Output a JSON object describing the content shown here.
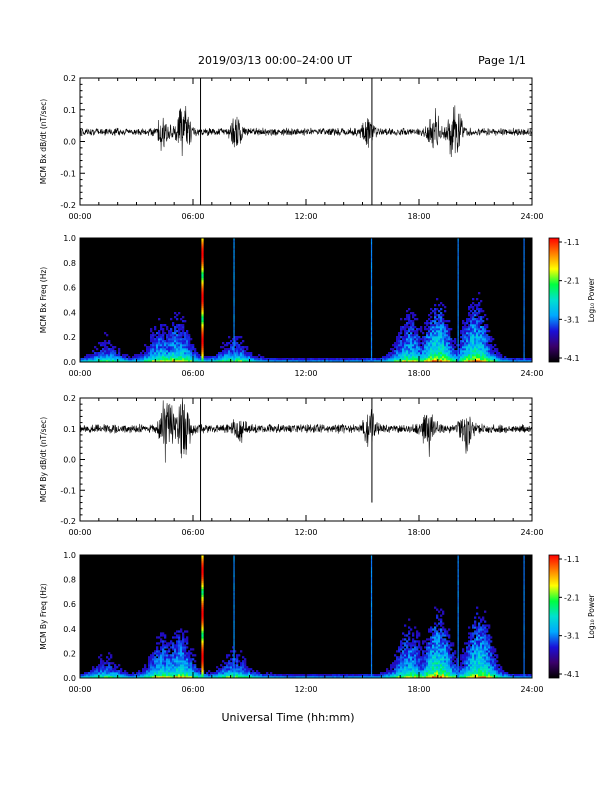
{
  "header": {
    "title": "2019/03/13  00:00–24:00 UT",
    "page": "Page 1/1"
  },
  "footer": {
    "xlabel": "Universal Time (hh:mm)"
  },
  "colorbar": {
    "label": "Log₁₀ Power",
    "ticks": [
      "-1.1",
      "-2.1",
      "-3.1",
      "-4.1"
    ],
    "colors": [
      "#000000",
      "#3a006a",
      "#1a10d8",
      "#00a8ff",
      "#00e0d0",
      "#00ff40",
      "#ffff00",
      "#ff8000",
      "#ff0000"
    ]
  },
  "chart_data": [
    {
      "type": "line",
      "ylabel": "MCM Bx dB/dt (nT/sec)",
      "xlim": [
        0,
        24
      ],
      "ylim": [
        -0.2,
        0.2
      ],
      "yticks": [
        "0.2",
        "0.1",
        "0.0",
        "-0.1",
        "-0.2"
      ],
      "xticks": [
        "00:00",
        "06:00",
        "12:00",
        "18:00",
        "24:00"
      ],
      "baseline": 0.03,
      "noise": 0.01,
      "bursts": [
        {
          "t": 4.4,
          "amp": 0.06
        },
        {
          "t": 5.5,
          "amp": 0.11
        },
        {
          "t": 8.3,
          "amp": 0.06
        },
        {
          "t": 15.3,
          "amp": 0.05
        },
        {
          "t": 18.8,
          "amp": 0.08
        },
        {
          "t": 19.9,
          "amp": 0.12
        }
      ],
      "spikes": [
        {
          "t": 6.4,
          "y": -0.2
        },
        {
          "t": 15.5,
          "y": -0.2
        }
      ],
      "line_color": "#000000"
    },
    {
      "type": "heatmap",
      "ylabel": "MCM Bx Freq (Hz)",
      "xlim": [
        0,
        24
      ],
      "ylim": [
        0,
        1.0
      ],
      "yticks": [
        "1.0",
        "0.8",
        "0.6",
        "0.4",
        "0.2",
        "0.0"
      ],
      "xticks": [
        "00:00",
        "06:00",
        "12:00",
        "18:00",
        "24:00"
      ],
      "zlim": [
        -4.1,
        -1.1
      ],
      "activity": [
        {
          "t": 1.4,
          "amp": 0.35,
          "fmax": 0.35
        },
        {
          "t": 4.3,
          "amp": 0.55,
          "fmax": 0.4
        },
        {
          "t": 5.2,
          "amp": 0.6,
          "fmax": 0.45
        },
        {
          "t": 8.2,
          "amp": 0.45,
          "fmax": 0.3
        },
        {
          "t": 17.5,
          "amp": 0.55,
          "fmax": 0.5
        },
        {
          "t": 19.0,
          "amp": 0.75,
          "fmax": 0.55
        },
        {
          "t": 21.0,
          "amp": 0.7,
          "fmax": 0.6
        }
      ],
      "vertical_lines": [
        {
          "t": 6.5,
          "strength": 1.0
        },
        {
          "t": 8.2,
          "strength": 0.5
        },
        {
          "t": 15.5,
          "strength": 0.45
        },
        {
          "t": 20.1,
          "strength": 0.4
        },
        {
          "t": 23.6,
          "strength": 0.35
        }
      ]
    },
    {
      "type": "line",
      "ylabel": "MCM By dB/dt (nT/sec)",
      "xlim": [
        0,
        24
      ],
      "ylim": [
        -0.2,
        0.2
      ],
      "yticks": [
        "0.2",
        "0.1",
        "0.0",
        "-0.1",
        "-0.2"
      ],
      "xticks": [
        "00:00",
        "06:00",
        "12:00",
        "18:00",
        "24:00"
      ],
      "baseline": 0.1,
      "noise": 0.012,
      "bursts": [
        {
          "t": 4.6,
          "amp": 0.12
        },
        {
          "t": 5.5,
          "amp": 0.11
        },
        {
          "t": 8.5,
          "amp": 0.04
        },
        {
          "t": 15.4,
          "amp": 0.07
        },
        {
          "t": 18.5,
          "amp": 0.09
        },
        {
          "t": 20.5,
          "amp": 0.08
        }
      ],
      "spikes": [
        {
          "t": 6.4,
          "y": -0.2
        },
        {
          "t": 15.5,
          "y": -0.14
        }
      ],
      "line_color": "#000000"
    },
    {
      "type": "heatmap",
      "ylabel": "MCM By Freq (Hz)",
      "xlim": [
        0,
        24
      ],
      "ylim": [
        0,
        1.0
      ],
      "yticks": [
        "1.0",
        "0.8",
        "0.6",
        "0.4",
        "0.2",
        "0.0"
      ],
      "xticks": [
        "00:00",
        "06:00",
        "12:00",
        "18:00",
        "24:00"
      ],
      "zlim": [
        -4.1,
        -1.1
      ],
      "activity": [
        {
          "t": 1.4,
          "amp": 0.35,
          "fmax": 0.3
        },
        {
          "t": 4.4,
          "amp": 0.55,
          "fmax": 0.45
        },
        {
          "t": 5.3,
          "amp": 0.6,
          "fmax": 0.5
        },
        {
          "t": 8.2,
          "amp": 0.45,
          "fmax": 0.3
        },
        {
          "t": 17.5,
          "amp": 0.55,
          "fmax": 0.55
        },
        {
          "t": 19.0,
          "amp": 0.75,
          "fmax": 0.6
        },
        {
          "t": 21.2,
          "amp": 0.7,
          "fmax": 0.65
        }
      ],
      "vertical_lines": [
        {
          "t": 6.5,
          "strength": 1.0
        },
        {
          "t": 8.2,
          "strength": 0.5
        },
        {
          "t": 15.5,
          "strength": 0.45
        },
        {
          "t": 20.1,
          "strength": 0.4
        },
        {
          "t": 23.6,
          "strength": 0.35
        }
      ]
    }
  ]
}
